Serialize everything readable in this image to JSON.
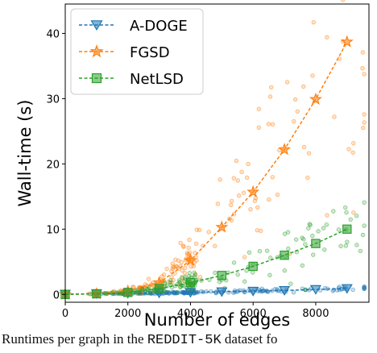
{
  "chart_data": {
    "type": "line",
    "xlabel": "Number of edges",
    "ylabel": "Wall-time (s)",
    "xlim": [
      0,
      9700
    ],
    "ylim": [
      -1.2,
      44.5
    ],
    "xticks": [
      0,
      2000,
      4000,
      6000,
      8000
    ],
    "yticks": [
      0,
      10,
      20,
      30,
      40
    ],
    "grid": false,
    "legend": "top-left",
    "series": [
      {
        "name": "A-DOGE",
        "color": "#1f77b4",
        "marker": "triangle-down",
        "x": [
          0,
          1000,
          2000,
          3000,
          4000,
          5000,
          6000,
          7000,
          8000,
          9000
        ],
        "values": [
          0.05,
          0.1,
          0.15,
          0.2,
          0.3,
          0.4,
          0.5,
          0.6,
          0.75,
          0.9
        ]
      },
      {
        "name": "FGSD",
        "color": "#ff7f0e",
        "marker": "star",
        "x": [
          0,
          1000,
          2000,
          3000,
          4000,
          5000,
          6000,
          7000,
          8000,
          9000
        ],
        "values": [
          0.0,
          0.1,
          0.5,
          1.8,
          5.2,
          10.3,
          15.7,
          22.2,
          29.9,
          38.7
        ]
      },
      {
        "name": "NetLSD",
        "color": "#2ca02c",
        "marker": "square",
        "x": [
          0,
          1000,
          2000,
          3000,
          4000,
          5000,
          6000,
          7000,
          8000,
          9000
        ],
        "values": [
          0.0,
          0.1,
          0.3,
          0.9,
          1.8,
          2.9,
          4.3,
          6.0,
          7.8,
          10.0
        ]
      }
    ]
  },
  "caption": {
    "prefix": "Runtimes per graph in the ",
    "dataset": "REDDIT-5K",
    "suffix": " dataset fo"
  }
}
